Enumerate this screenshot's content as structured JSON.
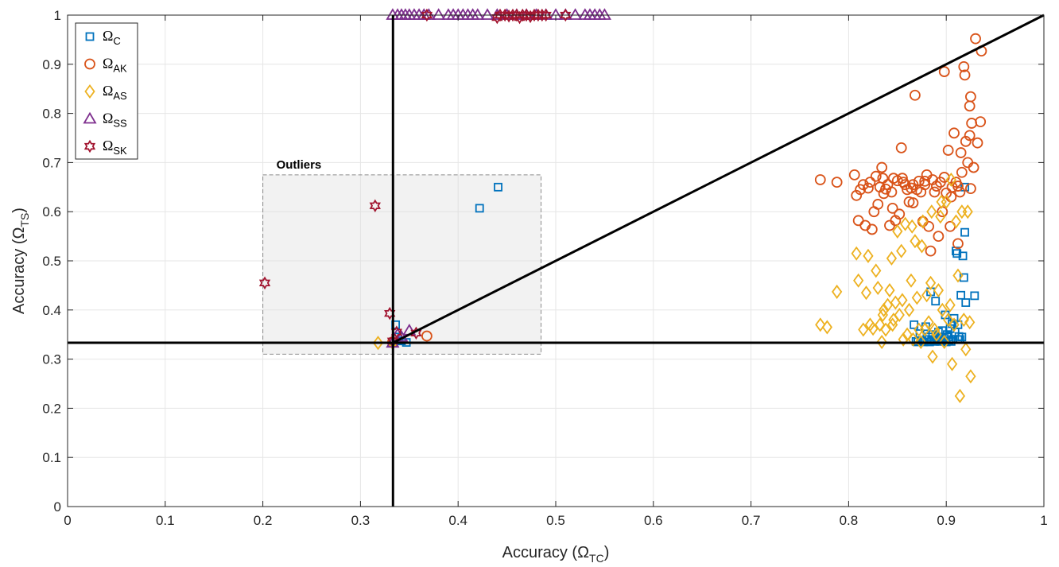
{
  "chart_data": {
    "type": "scatter",
    "title": "",
    "xlabel": {
      "prefix": "Accuracy (",
      "symbol": "Ω",
      "sub": "TC",
      "suffix": ")"
    },
    "ylabel": {
      "prefix": "Accuracy (",
      "symbol": "Ω",
      "sub": "TS",
      "suffix": ")"
    },
    "xlim": [
      0,
      1
    ],
    "ylim": [
      0,
      1
    ],
    "xticks": [
      "0",
      "0.1",
      "0.2",
      "0.3",
      "0.4",
      "0.5",
      "0.6",
      "0.7",
      "0.8",
      "0.9",
      "1"
    ],
    "yticks": [
      "0",
      "0.1",
      "0.2",
      "0.3",
      "0.4",
      "0.5",
      "0.6",
      "0.7",
      "0.8",
      "0.9",
      "1"
    ],
    "grid": true,
    "legend_position": "top-left",
    "reference_lines": [
      {
        "kind": "vertical",
        "x": 0.3333
      },
      {
        "kind": "horizontal",
        "y": 0.3333
      },
      {
        "kind": "segment",
        "from": [
          0.3333,
          0.3333
        ],
        "to": [
          1,
          1
        ]
      }
    ],
    "annotation": {
      "label": "Outliers",
      "x_range": [
        0.2,
        0.485
      ],
      "y_range": [
        0.31,
        0.675
      ]
    },
    "series": [
      {
        "name": {
          "symbol": "Ω",
          "sub": "C"
        },
        "marker": "square",
        "color": "#0072BD",
        "points": [
          [
            0.333,
            0.333
          ],
          [
            0.334,
            0.336
          ],
          [
            0.336,
            0.37
          ],
          [
            0.338,
            0.345
          ],
          [
            0.342,
            0.337
          ],
          [
            0.347,
            0.334
          ],
          [
            0.422,
            0.607
          ],
          [
            0.441,
            0.65
          ],
          [
            0.867,
            0.37
          ],
          [
            0.869,
            0.336
          ],
          [
            0.871,
            0.335
          ],
          [
            0.873,
            0.352
          ],
          [
            0.875,
            0.337
          ],
          [
            0.877,
            0.335
          ],
          [
            0.879,
            0.366
          ],
          [
            0.88,
            0.34
          ],
          [
            0.882,
            0.345
          ],
          [
            0.883,
            0.335
          ],
          [
            0.884,
            0.437
          ],
          [
            0.885,
            0.338
          ],
          [
            0.886,
            0.35
          ],
          [
            0.887,
            0.34
          ],
          [
            0.888,
            0.336
          ],
          [
            0.889,
            0.418
          ],
          [
            0.89,
            0.342
          ],
          [
            0.891,
            0.338
          ],
          [
            0.892,
            0.355
          ],
          [
            0.893,
            0.34
          ],
          [
            0.894,
            0.336
          ],
          [
            0.895,
            0.345
          ],
          [
            0.896,
            0.358
          ],
          [
            0.897,
            0.337
          ],
          [
            0.898,
            0.342
          ],
          [
            0.899,
            0.39
          ],
          [
            0.9,
            0.335
          ],
          [
            0.901,
            0.35
          ],
          [
            0.902,
            0.345
          ],
          [
            0.903,
            0.338
          ],
          [
            0.904,
            0.362
          ],
          [
            0.905,
            0.336
          ],
          [
            0.906,
            0.372
          ],
          [
            0.907,
            0.34
          ],
          [
            0.908,
            0.383
          ],
          [
            0.909,
            0.355
          ],
          [
            0.91,
            0.52
          ],
          [
            0.911,
            0.515
          ],
          [
            0.912,
            0.37
          ],
          [
            0.913,
            0.346
          ],
          [
            0.914,
            0.34
          ],
          [
            0.915,
            0.43
          ],
          [
            0.916,
            0.345
          ],
          [
            0.917,
            0.51
          ],
          [
            0.918,
            0.466
          ],
          [
            0.919,
            0.558
          ],
          [
            0.92,
            0.415
          ],
          [
            0.929,
            0.429
          ],
          [
            0.919,
            0.65
          ],
          [
            0.912,
            0.34
          ]
        ]
      },
      {
        "name": {
          "symbol": "Ω",
          "sub": "AK"
        },
        "marker": "circle",
        "color": "#D95319",
        "points": [
          [
            0.333,
            0.335
          ],
          [
            0.368,
            0.347
          ],
          [
            0.771,
            0.665
          ],
          [
            0.788,
            0.66
          ],
          [
            0.806,
            0.675
          ],
          [
            0.808,
            0.633
          ],
          [
            0.81,
            0.582
          ],
          [
            0.812,
            0.645
          ],
          [
            0.815,
            0.655
          ],
          [
            0.817,
            0.572
          ],
          [
            0.82,
            0.648
          ],
          [
            0.822,
            0.66
          ],
          [
            0.824,
            0.564
          ],
          [
            0.826,
            0.6
          ],
          [
            0.828,
            0.672
          ],
          [
            0.83,
            0.615
          ],
          [
            0.832,
            0.65
          ],
          [
            0.834,
            0.69
          ],
          [
            0.836,
            0.637
          ],
          [
            0.838,
            0.646
          ],
          [
            0.84,
            0.655
          ],
          [
            0.842,
            0.572
          ],
          [
            0.844,
            0.64
          ],
          [
            0.846,
            0.668
          ],
          [
            0.848,
            0.582
          ],
          [
            0.85,
            0.663
          ],
          [
            0.852,
            0.595
          ],
          [
            0.854,
            0.73
          ],
          [
            0.856,
            0.66
          ],
          [
            0.858,
            0.655
          ],
          [
            0.86,
            0.645
          ],
          [
            0.862,
            0.62
          ],
          [
            0.864,
            0.648
          ],
          [
            0.866,
            0.655
          ],
          [
            0.868,
            0.837
          ],
          [
            0.87,
            0.645
          ],
          [
            0.872,
            0.662
          ],
          [
            0.874,
            0.64
          ],
          [
            0.876,
            0.58
          ],
          [
            0.878,
            0.655
          ],
          [
            0.88,
            0.675
          ],
          [
            0.882,
            0.57
          ],
          [
            0.884,
            0.52
          ],
          [
            0.886,
            0.665
          ],
          [
            0.888,
            0.64
          ],
          [
            0.89,
            0.652
          ],
          [
            0.892,
            0.55
          ],
          [
            0.894,
            0.66
          ],
          [
            0.896,
            0.6
          ],
          [
            0.898,
            0.885
          ],
          [
            0.9,
            0.638
          ],
          [
            0.902,
            0.725
          ],
          [
            0.904,
            0.57
          ],
          [
            0.906,
            0.65
          ],
          [
            0.908,
            0.76
          ],
          [
            0.91,
            0.66
          ],
          [
            0.912,
            0.535
          ],
          [
            0.914,
            0.64
          ],
          [
            0.916,
            0.68
          ],
          [
            0.918,
            0.895
          ],
          [
            0.919,
            0.878
          ],
          [
            0.92,
            0.743
          ],
          [
            0.922,
            0.7
          ],
          [
            0.924,
            0.755
          ],
          [
            0.924,
            0.815
          ],
          [
            0.925,
            0.834
          ],
          [
            0.926,
            0.78
          ],
          [
            0.928,
            0.69
          ],
          [
            0.93,
            0.952
          ],
          [
            0.932,
            0.74
          ],
          [
            0.935,
            0.783
          ],
          [
            0.936,
            0.927
          ],
          [
            0.912,
            0.652
          ],
          [
            0.905,
            0.63
          ],
          [
            0.898,
            0.67
          ],
          [
            0.878,
            0.662
          ],
          [
            0.866,
            0.618
          ],
          [
            0.855,
            0.668
          ],
          [
            0.845,
            0.607
          ],
          [
            0.835,
            0.668
          ],
          [
            0.925,
            0.647
          ],
          [
            0.915,
            0.72
          ]
        ]
      },
      {
        "name": {
          "symbol": "Ω",
          "sub": "AS"
        },
        "marker": "diamond",
        "color": "#EDB120",
        "points": [
          [
            0.318,
            0.333
          ],
          [
            0.333,
            0.333
          ],
          [
            0.771,
            0.37
          ],
          [
            0.778,
            0.365
          ],
          [
            0.788,
            0.437
          ],
          [
            0.808,
            0.515
          ],
          [
            0.81,
            0.46
          ],
          [
            0.815,
            0.36
          ],
          [
            0.818,
            0.435
          ],
          [
            0.82,
            0.51
          ],
          [
            0.822,
            0.37
          ],
          [
            0.825,
            0.362
          ],
          [
            0.828,
            0.48
          ],
          [
            0.83,
            0.445
          ],
          [
            0.832,
            0.37
          ],
          [
            0.834,
            0.335
          ],
          [
            0.836,
            0.4
          ],
          [
            0.838,
            0.36
          ],
          [
            0.84,
            0.41
          ],
          [
            0.842,
            0.44
          ],
          [
            0.844,
            0.505
          ],
          [
            0.846,
            0.38
          ],
          [
            0.848,
            0.415
          ],
          [
            0.85,
            0.56
          ],
          [
            0.852,
            0.39
          ],
          [
            0.854,
            0.52
          ],
          [
            0.856,
            0.34
          ],
          [
            0.858,
            0.575
          ],
          [
            0.86,
            0.35
          ],
          [
            0.862,
            0.4
          ],
          [
            0.864,
            0.46
          ],
          [
            0.866,
            0.34
          ],
          [
            0.868,
            0.54
          ],
          [
            0.87,
            0.425
          ],
          [
            0.872,
            0.36
          ],
          [
            0.874,
            0.335
          ],
          [
            0.876,
            0.58
          ],
          [
            0.878,
            0.36
          ],
          [
            0.88,
            0.43
          ],
          [
            0.882,
            0.375
          ],
          [
            0.884,
            0.455
          ],
          [
            0.886,
            0.305
          ],
          [
            0.888,
            0.36
          ],
          [
            0.89,
            0.35
          ],
          [
            0.892,
            0.44
          ],
          [
            0.894,
            0.59
          ],
          [
            0.896,
            0.4
          ],
          [
            0.898,
            0.335
          ],
          [
            0.9,
            0.62
          ],
          [
            0.902,
            0.38
          ],
          [
            0.904,
            0.41
          ],
          [
            0.906,
            0.29
          ],
          [
            0.908,
            0.37
          ],
          [
            0.91,
            0.58
          ],
          [
            0.912,
            0.47
          ],
          [
            0.914,
            0.225
          ],
          [
            0.916,
            0.6
          ],
          [
            0.918,
            0.38
          ],
          [
            0.92,
            0.32
          ],
          [
            0.922,
            0.6
          ],
          [
            0.924,
            0.375
          ],
          [
            0.925,
            0.265
          ],
          [
            0.905,
            0.665
          ],
          [
            0.895,
            0.62
          ],
          [
            0.885,
            0.6
          ],
          [
            0.875,
            0.53
          ],
          [
            0.865,
            0.57
          ],
          [
            0.855,
            0.42
          ],
          [
            0.845,
            0.37
          ],
          [
            0.835,
            0.39
          ]
        ]
      },
      {
        "name": {
          "symbol": "Ω",
          "sub": "SS"
        },
        "marker": "triangle",
        "color": "#7E2F8E",
        "points": [
          [
            0.333,
            0.333
          ],
          [
            0.338,
            0.35
          ],
          [
            0.342,
            0.345
          ],
          [
            0.35,
            0.358
          ],
          [
            0.333,
            1
          ],
          [
            0.338,
            1
          ],
          [
            0.342,
            1
          ],
          [
            0.346,
            1
          ],
          [
            0.35,
            1
          ],
          [
            0.355,
            1
          ],
          [
            0.36,
            1
          ],
          [
            0.365,
            1
          ],
          [
            0.37,
            1
          ],
          [
            0.38,
            1
          ],
          [
            0.39,
            1
          ],
          [
            0.395,
            1
          ],
          [
            0.4,
            1
          ],
          [
            0.405,
            1
          ],
          [
            0.41,
            1
          ],
          [
            0.415,
            1
          ],
          [
            0.42,
            1
          ],
          [
            0.43,
            1
          ],
          [
            0.44,
            1
          ],
          [
            0.45,
            1
          ],
          [
            0.46,
            1
          ],
          [
            0.47,
            1
          ],
          [
            0.48,
            1
          ],
          [
            0.49,
            1
          ],
          [
            0.5,
            1
          ],
          [
            0.51,
            1
          ],
          [
            0.52,
            1
          ],
          [
            0.53,
            1
          ],
          [
            0.535,
            1
          ],
          [
            0.54,
            1
          ],
          [
            0.545,
            1
          ],
          [
            0.55,
            1
          ]
        ]
      },
      {
        "name": {
          "symbol": "Ω",
          "sub": "SK"
        },
        "marker": "hexagram",
        "color": "#A2142F",
        "points": [
          [
            0.202,
            0.455
          ],
          [
            0.315,
            0.612
          ],
          [
            0.33,
            0.393
          ],
          [
            0.333,
            0.337
          ],
          [
            0.337,
            0.355
          ],
          [
            0.357,
            0.353
          ],
          [
            0.368,
            1
          ],
          [
            0.44,
            0.995
          ],
          [
            0.443,
            1
          ],
          [
            0.448,
            1
          ],
          [
            0.452,
            0.998
          ],
          [
            0.456,
            1
          ],
          [
            0.46,
            1
          ],
          [
            0.463,
            0.995
          ],
          [
            0.466,
            1
          ],
          [
            0.47,
            1
          ],
          [
            0.474,
            0.997
          ],
          [
            0.478,
            1
          ],
          [
            0.482,
            1
          ],
          [
            0.486,
            1
          ],
          [
            0.49,
            1
          ],
          [
            0.51,
            1
          ]
        ]
      }
    ]
  }
}
